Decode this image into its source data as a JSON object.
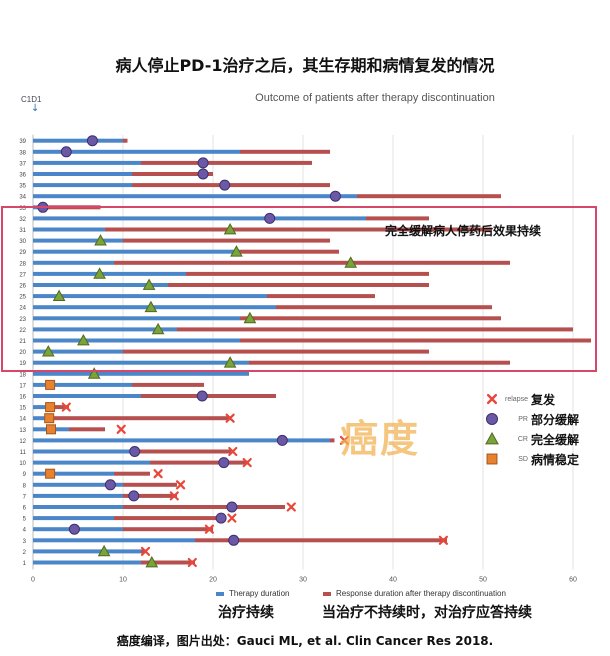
{
  "header": {
    "cn_title": "病人停止PD-1治疗之后，其生存期和病情复发的情况",
    "marker_label": "C1D1"
  },
  "highlight_text": "完全缓解病人停药后效果持续",
  "legend": [
    {
      "symbol": "relapse",
      "en": "relapse",
      "cn": "复发"
    },
    {
      "symbol": "PR",
      "en": "PR",
      "cn": "部分缓解"
    },
    {
      "symbol": "CR",
      "en": "CR",
      "cn": "完全缓解"
    },
    {
      "symbol": "SD",
      "en": "SD",
      "cn": "病情稳定"
    }
  ],
  "watermark": "癌度",
  "bottom_legend": {
    "therapy": "Therapy duration",
    "response": "Response duration after therapy discontinuation"
  },
  "captions": {
    "left": "治疗持续",
    "right": "当治疗不持续时，对治疗应答持续"
  },
  "source": "癌度编译，图片出处：Gauci ML, et al. Clin Cancer Res 2018.",
  "colors": {
    "therapy": "#4a86c8",
    "response": "#b5504f",
    "relapse": "#e8473a",
    "pr": "#6b59a6",
    "cr": "#7ca33a",
    "sd": "#e8822e",
    "highlight_box": "#d6476a"
  },
  "chart_data": {
    "type": "bar",
    "title": "Outcome of patients after therapy discontinuation",
    "orientation": "horizontal-stacked",
    "xlim": [
      0,
      62
    ],
    "xticks": [
      0,
      10,
      20,
      30,
      40,
      50,
      60
    ],
    "categories": [
      "1",
      "2",
      "3",
      "4",
      "5",
      "6",
      "7",
      "8",
      "9",
      "10",
      "11",
      "12",
      "13",
      "14",
      "15",
      "16",
      "17",
      "18",
      "19",
      "20",
      "21",
      "22",
      "23",
      "24",
      "25",
      "26",
      "27",
      "28",
      "29",
      "30",
      "31",
      "32",
      "33",
      "34",
      "35",
      "36",
      "37",
      "38",
      "39"
    ],
    "series": [
      {
        "name": "Therapy duration",
        "values": [
          12,
          12,
          18,
          10,
          9,
          10,
          10,
          10,
          9,
          13,
          11,
          33,
          4,
          2,
          2,
          12,
          11,
          24,
          24,
          10,
          23,
          16,
          23,
          27,
          26,
          15,
          17,
          9,
          23,
          10,
          8,
          37,
          0.5,
          36,
          11,
          11,
          12,
          23,
          10
        ]
      },
      {
        "name": "Response duration after therapy discontinuation",
        "values": [
          6,
          0.5,
          28,
          10,
          12,
          18,
          6,
          6,
          4,
          11,
          11,
          0.5,
          4,
          20,
          2,
          15,
          8,
          0,
          29,
          34,
          39,
          44,
          29,
          24,
          12,
          29,
          27,
          44,
          11,
          23,
          43,
          7,
          7,
          16,
          22,
          9,
          19,
          10,
          0.5
        ]
      }
    ],
    "best_response": [
      {
        "patient": 1,
        "type": "CR",
        "x": 13.2
      },
      {
        "patient": 2,
        "type": "CR",
        "x": 7.9
      },
      {
        "patient": 3,
        "type": "PR",
        "x": 22.3
      },
      {
        "patient": 4,
        "type": "PR",
        "x": 4.6
      },
      {
        "patient": 5,
        "type": "PR",
        "x": 20.9
      },
      {
        "patient": 6,
        "type": "PR",
        "x": 22.1
      },
      {
        "patient": 7,
        "type": "PR",
        "x": 11.2
      },
      {
        "patient": 8,
        "type": "PR",
        "x": 8.6
      },
      {
        "patient": 9,
        "type": "SD",
        "x": 1.9
      },
      {
        "patient": 10,
        "type": "PR",
        "x": 21.2
      },
      {
        "patient": 11,
        "type": "PR",
        "x": 11.3
      },
      {
        "patient": 12,
        "type": "PR",
        "x": 27.7
      },
      {
        "patient": 13,
        "type": "SD",
        "x": 2.0
      },
      {
        "patient": 14,
        "type": "SD",
        "x": 1.8
      },
      {
        "patient": 15,
        "type": "SD",
        "x": 1.9
      },
      {
        "patient": 16,
        "type": "PR",
        "x": 18.8
      },
      {
        "patient": 17,
        "type": "SD",
        "x": 1.9
      },
      {
        "patient": 18,
        "type": "CR",
        "x": 6.8
      },
      {
        "patient": 19,
        "type": "CR",
        "x": 21.9
      },
      {
        "patient": 20,
        "type": "CR",
        "x": 1.7
      },
      {
        "patient": 21,
        "type": "CR",
        "x": 5.6
      },
      {
        "patient": 22,
        "type": "CR",
        "x": 13.9
      },
      {
        "patient": 23,
        "type": "CR",
        "x": 24.1
      },
      {
        "patient": 24,
        "type": "CR",
        "x": 13.1
      },
      {
        "patient": 25,
        "type": "CR",
        "x": 2.9
      },
      {
        "patient": 26,
        "type": "CR",
        "x": 12.9
      },
      {
        "patient": 27,
        "type": "CR",
        "x": 7.4
      },
      {
        "patient": 28,
        "type": "CR",
        "x": 35.3
      },
      {
        "patient": 29,
        "type": "CR",
        "x": 22.6
      },
      {
        "patient": 30,
        "type": "CR",
        "x": 7.5
      },
      {
        "patient": 31,
        "type": "CR",
        "x": 21.9
      },
      {
        "patient": 32,
        "type": "PR",
        "x": 26.3
      },
      {
        "patient": 33,
        "type": "PR",
        "x": 1.1
      },
      {
        "patient": 34,
        "type": "PR",
        "x": 33.6
      },
      {
        "patient": 35,
        "type": "PR",
        "x": 21.3
      },
      {
        "patient": 36,
        "type": "PR",
        "x": 18.9
      },
      {
        "patient": 37,
        "type": "PR",
        "x": 18.9
      },
      {
        "patient": 38,
        "type": "PR",
        "x": 3.7
      },
      {
        "patient": 39,
        "type": "PR",
        "x": 6.6
      }
    ],
    "relapse": [
      {
        "patient": 1,
        "x": 17.7
      },
      {
        "patient": 2,
        "x": 12.5
      },
      {
        "patient": 3,
        "x": 45.6
      },
      {
        "patient": 4,
        "x": 19.6
      },
      {
        "patient": 5,
        "x": 22.1
      },
      {
        "patient": 6,
        "x": 28.7
      },
      {
        "patient": 7,
        "x": 15.7
      },
      {
        "patient": 8,
        "x": 16.4
      },
      {
        "patient": 9,
        "x": 13.9
      },
      {
        "patient": 10,
        "x": 23.8
      },
      {
        "patient": 11,
        "x": 22.2
      },
      {
        "patient": 12,
        "x": 34.6
      },
      {
        "patient": 13,
        "x": 9.8
      },
      {
        "patient": 14,
        "x": 21.9
      },
      {
        "patient": 15,
        "x": 3.7
      }
    ],
    "grid": true
  }
}
